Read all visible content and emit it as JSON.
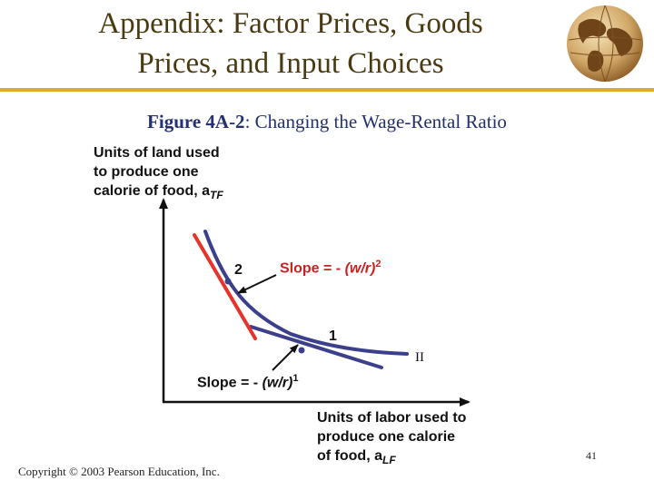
{
  "header": {
    "title_line1": "Appendix: Factor Prices, Goods",
    "title_line2": "Prices, and Input Choices"
  },
  "figure": {
    "label": "Figure 4A-2",
    "caption": ": Changing the Wage-Rental Ratio"
  },
  "diagram": {
    "y_axis_label_line1": "Units of land used",
    "y_axis_label_line2": "to produce one",
    "y_axis_label_line3": "calorie of food, a",
    "y_axis_sub": "TF",
    "x_axis_label_line1": "Units of labor used to",
    "x_axis_label_line2": "produce one calorie",
    "x_axis_label_line3": "of food, a",
    "x_axis_sub": "LF",
    "point_2_label": "2",
    "point_1_label": "1",
    "curve_label": "II",
    "slope2_text": "Slope = - ",
    "slope2_ratio": "(w/r)",
    "slope2_exp": "2",
    "slope1_text": "Slope = - ",
    "slope1_ratio": "(w/r)",
    "slope1_exp": "1"
  },
  "colors": {
    "title": "#4a3a12",
    "accent_rule": "#e0a830",
    "subtitle": "#24316e",
    "isoquant": "#3c3f8c",
    "tangent_line": "#e8332a",
    "red_label": "#cc1f1f"
  },
  "footer": {
    "copyright": "Copyright © 2003 Pearson Education, Inc.",
    "page_number": "41"
  }
}
